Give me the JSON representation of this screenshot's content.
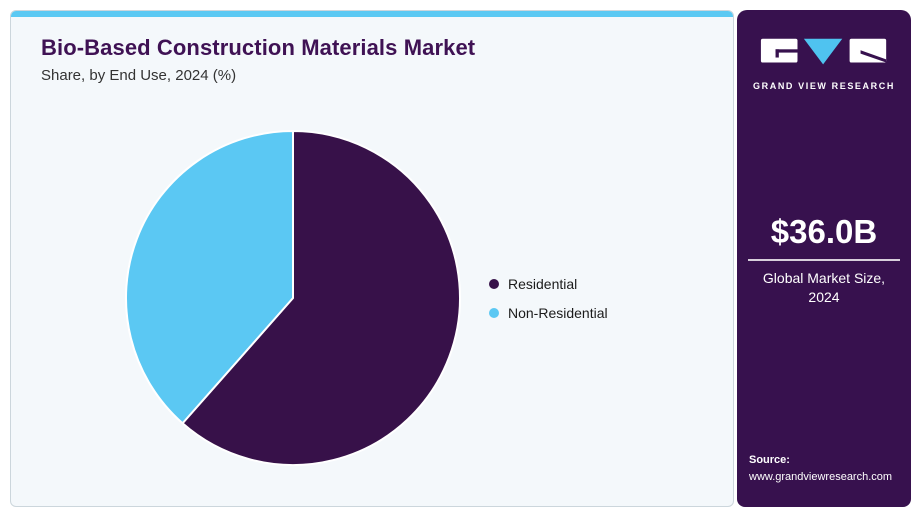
{
  "header": {
    "title": "Bio-Based Construction Materials Market",
    "subtitle": "Share, by End Use, 2024 (%)"
  },
  "chart_data": {
    "type": "pie",
    "title": "Bio-Based Construction Materials Market Share, by End Use, 2024 (%)",
    "categories": [
      "Residential",
      "Non-Residential"
    ],
    "values": [
      61.5,
      38.5
    ],
    "unit": "%",
    "colors": [
      "#371149",
      "#5bc8f3"
    ],
    "start_angle_deg": 0,
    "direction": "clockwise",
    "legend_position": "right",
    "data_labels": false
  },
  "sidebar": {
    "logo": {
      "brand": "GRAND VIEW RESEARCH"
    },
    "market_size": {
      "value": "$36.0B",
      "label_line1": "Global Market Size,",
      "label_line2": "2024"
    },
    "source": {
      "label": "Source:",
      "url": "www.grandviewresearch.com"
    }
  },
  "theme": {
    "accent_blue": "#5bc9f3",
    "brand_purple": "#37114e",
    "title_purple": "#3f1254",
    "card_background": "#f4f8fb",
    "card_border": "#ccd6dc",
    "logo_triangle_blue": "#4fc3f0"
  }
}
